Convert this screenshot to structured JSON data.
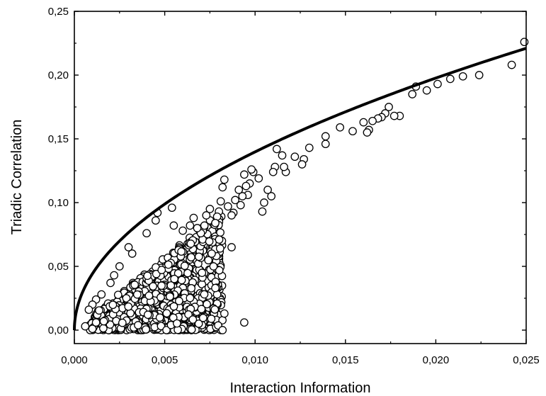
{
  "chart_data": {
    "type": "scatter",
    "xlabel": "Interaction Information",
    "ylabel": "Triadic Correlation",
    "xlim": [
      0,
      0.025
    ],
    "ylim": [
      -0.01,
      0.25
    ],
    "x_ticks": [
      "0,000",
      "0,005",
      "0,010",
      "0,015",
      "0,020",
      "0,025"
    ],
    "y_ticks": [
      "0,00",
      "0,05",
      "0,10",
      "0,15",
      "0,20",
      "0,25"
    ],
    "grid": false,
    "legend": "none",
    "marker": "open-circle",
    "marker_color": "#000000",
    "bound_curve": {
      "description_type": "line",
      "x": [
        0,
        0.0002,
        0.0005,
        0.001,
        0.002,
        0.003,
        0.004,
        0.005,
        0.006,
        0.008,
        0.01,
        0.012,
        0.014,
        0.016,
        0.018,
        0.02,
        0.022,
        0.025
      ],
      "y": [
        0,
        0.021,
        0.033,
        0.046,
        0.063,
        0.075,
        0.086,
        0.095,
        0.103,
        0.117,
        0.13,
        0.142,
        0.153,
        0.164,
        0.175,
        0.186,
        0.198,
        0.221
      ]
    },
    "points": [
      {
        "x": 0.0249,
        "y": 0.226
      },
      {
        "x": 0.0242,
        "y": 0.208
      },
      {
        "x": 0.0224,
        "y": 0.2
      },
      {
        "x": 0.0215,
        "y": 0.199
      },
      {
        "x": 0.0208,
        "y": 0.197
      },
      {
        "x": 0.0201,
        "y": 0.193
      },
      {
        "x": 0.0195,
        "y": 0.188
      },
      {
        "x": 0.0189,
        "y": 0.191
      },
      {
        "x": 0.0187,
        "y": 0.185
      },
      {
        "x": 0.018,
        "y": 0.168
      },
      {
        "x": 0.0177,
        "y": 0.168
      },
      {
        "x": 0.0174,
        "y": 0.175
      },
      {
        "x": 0.0172,
        "y": 0.17
      },
      {
        "x": 0.017,
        "y": 0.167
      },
      {
        "x": 0.0168,
        "y": 0.166
      },
      {
        "x": 0.0165,
        "y": 0.164
      },
      {
        "x": 0.0163,
        "y": 0.157
      },
      {
        "x": 0.0162,
        "y": 0.155
      },
      {
        "x": 0.016,
        "y": 0.163
      },
      {
        "x": 0.0154,
        "y": 0.156
      },
      {
        "x": 0.0147,
        "y": 0.159
      },
      {
        "x": 0.0139,
        "y": 0.152
      },
      {
        "x": 0.0139,
        "y": 0.146
      },
      {
        "x": 0.013,
        "y": 0.143
      },
      {
        "x": 0.0127,
        "y": 0.134
      },
      {
        "x": 0.0126,
        "y": 0.13
      },
      {
        "x": 0.0122,
        "y": 0.136
      },
      {
        "x": 0.0117,
        "y": 0.124
      },
      {
        "x": 0.0116,
        "y": 0.128
      },
      {
        "x": 0.0115,
        "y": 0.137
      },
      {
        "x": 0.0112,
        "y": 0.142
      },
      {
        "x": 0.0111,
        "y": 0.128
      },
      {
        "x": 0.011,
        "y": 0.124
      },
      {
        "x": 0.0109,
        "y": 0.105
      },
      {
        "x": 0.0107,
        "y": 0.11
      },
      {
        "x": 0.0105,
        "y": 0.1
      },
      {
        "x": 0.0104,
        "y": 0.093
      },
      {
        "x": 0.0102,
        "y": 0.119
      },
      {
        "x": 0.0099,
        "y": 0.124
      },
      {
        "x": 0.0098,
        "y": 0.126
      },
      {
        "x": 0.0097,
        "y": 0.115
      },
      {
        "x": 0.0096,
        "y": 0.106
      },
      {
        "x": 0.0095,
        "y": 0.113
      },
      {
        "x": 0.0094,
        "y": 0.122
      },
      {
        "x": 0.0093,
        "y": 0.105
      },
      {
        "x": 0.0092,
        "y": 0.098
      },
      {
        "x": 0.0091,
        "y": 0.11
      },
      {
        "x": 0.0089,
        "y": 0.102
      },
      {
        "x": 0.0088,
        "y": 0.092
      },
      {
        "x": 0.0087,
        "y": 0.09
      },
      {
        "x": 0.0085,
        "y": 0.097
      },
      {
        "x": 0.0083,
        "y": 0.118
      },
      {
        "x": 0.0082,
        "y": 0.112
      },
      {
        "x": 0.0081,
        "y": 0.101
      },
      {
        "x": 0.008,
        "y": 0.093
      },
      {
        "x": 0.0079,
        "y": 0.089
      },
      {
        "x": 0.0078,
        "y": 0.084
      },
      {
        "x": 0.0087,
        "y": 0.065
      },
      {
        "x": 0.0094,
        "y": 0.006
      },
      {
        "x": 0.0083,
        "y": 0.013
      },
      {
        "x": 0.0082,
        "y": 0.0
      },
      {
        "x": 0.0079,
        "y": 0.028
      },
      {
        "x": 0.0078,
        "y": 0.033
      },
      {
        "x": 0.0077,
        "y": 0.05
      },
      {
        "x": 0.0076,
        "y": 0.06
      },
      {
        "x": 0.0075,
        "y": 0.095
      },
      {
        "x": 0.0073,
        "y": 0.09
      },
      {
        "x": 0.0072,
        "y": 0.082
      },
      {
        "x": 0.007,
        "y": 0.076
      },
      {
        "x": 0.0068,
        "y": 0.08
      },
      {
        "x": 0.0066,
        "y": 0.088
      },
      {
        "x": 0.0064,
        "y": 0.082
      },
      {
        "x": 0.006,
        "y": 0.078
      },
      {
        "x": 0.0055,
        "y": 0.082
      },
      {
        "x": 0.0054,
        "y": 0.096
      },
      {
        "x": 0.0046,
        "y": 0.092
      },
      {
        "x": 0.0045,
        "y": 0.086
      },
      {
        "x": 0.004,
        "y": 0.076
      },
      {
        "x": 0.003,
        "y": 0.065
      },
      {
        "x": 0.0032,
        "y": 0.06
      },
      {
        "x": 0.0025,
        "y": 0.05
      },
      {
        "x": 0.0022,
        "y": 0.043
      },
      {
        "x": 0.002,
        "y": 0.037
      },
      {
        "x": 0.0015,
        "y": 0.028
      },
      {
        "x": 0.0012,
        "y": 0.024
      },
      {
        "x": 0.001,
        "y": 0.02
      },
      {
        "x": 0.0008,
        "y": 0.016
      },
      {
        "x": 0.0006,
        "y": 0.003
      },
      {
        "x": 0.001,
        "y": 0.001
      },
      {
        "x": 0.0012,
        "y": 0.006
      }
    ],
    "cluster": {
      "count": 900,
      "x_range": [
        0.0008,
        0.0082
      ],
      "y_range": [
        0.0,
        0.09
      ],
      "bounded_by": "bound_curve"
    }
  }
}
